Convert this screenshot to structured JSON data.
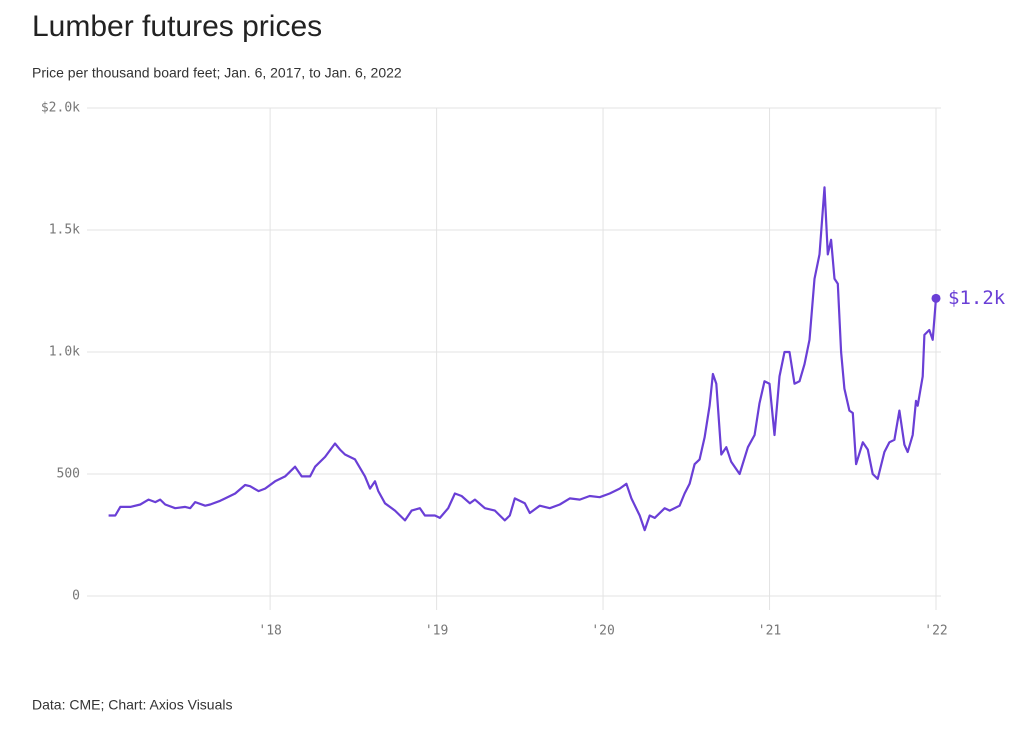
{
  "chart_data": {
    "type": "line",
    "title": "Lumber futures prices",
    "subtitle": "Price per thousand board feet; Jan. 6, 2017, to Jan. 6, 2022",
    "source": "Data: CME; Chart: Axios Visuals",
    "xlim": [
      2016.9,
      2022.03
    ],
    "xticks": [
      {
        "value": 2018,
        "label": "'18"
      },
      {
        "value": 2019,
        "label": "'19"
      },
      {
        "value": 2020,
        "label": "'20"
      },
      {
        "value": 2021,
        "label": "'21"
      },
      {
        "value": 2022,
        "label": "'22"
      }
    ],
    "ylim": [
      0,
      2000
    ],
    "yticks": [
      {
        "value": 0,
        "label": "0"
      },
      500,
      {
        "value": 1000,
        "label": "1.0k"
      },
      {
        "value": 1500,
        "label": "1.5k"
      },
      {
        "value": 2000,
        "label": "$2.0k"
      }
    ],
    "grid": true,
    "x": [
      2017.03,
      2017.07,
      2017.1,
      2017.16,
      2017.22,
      2017.27,
      2017.31,
      2017.34,
      2017.37,
      2017.43,
      2017.49,
      2017.52,
      2017.55,
      2017.61,
      2017.64,
      2017.7,
      2017.73,
      2017.79,
      2017.85,
      2017.88,
      2017.93,
      2017.97,
      2018.03,
      2018.09,
      2018.15,
      2018.19,
      2018.24,
      2018.27,
      2018.33,
      2018.39,
      2018.42,
      2018.45,
      2018.51,
      2018.57,
      2018.6,
      2018.63,
      2018.65,
      2018.69,
      2018.75,
      2018.81,
      2018.85,
      2018.9,
      2018.93,
      2018.99,
      2019.02,
      2019.07,
      2019.11,
      2019.15,
      2019.2,
      2019.23,
      2019.29,
      2019.35,
      2019.41,
      2019.44,
      2019.47,
      2019.53,
      2019.56,
      2019.62,
      2019.68,
      2019.74,
      2019.8,
      2019.86,
      2019.92,
      2019.98,
      2020.04,
      2020.1,
      2020.14,
      2020.17,
      2020.22,
      2020.25,
      2020.28,
      2020.31,
      2020.37,
      2020.4,
      2020.46,
      2020.49,
      2020.52,
      2020.55,
      2020.58,
      2020.61,
      2020.64,
      2020.66,
      2020.68,
      2020.71,
      2020.74,
      2020.77,
      2020.82,
      2020.87,
      2020.91,
      2020.94,
      2020.97,
      2021.0,
      2021.03,
      2021.06,
      2021.09,
      2021.12,
      2021.15,
      2021.18,
      2021.21,
      2021.24,
      2021.27,
      2021.3,
      2021.33,
      2021.35,
      2021.37,
      2021.39,
      2021.41,
      2021.43,
      2021.45,
      2021.48,
      2021.5,
      2021.52,
      2021.56,
      2021.59,
      2021.62,
      2021.65,
      2021.69,
      2021.72,
      2021.75,
      2021.78,
      2021.81,
      2021.83,
      2021.86,
      2021.88,
      2021.89,
      2021.92,
      2021.93,
      2021.96,
      2021.98,
      2022.0
    ],
    "series": [
      {
        "name": "Lumber futures",
        "color": "#6a3fd6",
        "values": [
          330,
          330,
          365,
          365,
          375,
          395,
          385,
          395,
          375,
          360,
          365,
          360,
          385,
          370,
          375,
          390,
          400,
          420,
          455,
          450,
          430,
          440,
          470,
          490,
          530,
          490,
          490,
          530,
          570,
          625,
          600,
          580,
          560,
          490,
          440,
          470,
          430,
          380,
          350,
          310,
          350,
          360,
          330,
          330,
          320,
          360,
          420,
          410,
          380,
          395,
          360,
          350,
          310,
          330,
          400,
          380,
          340,
          370,
          360,
          375,
          400,
          395,
          410,
          405,
          420,
          440,
          460,
          400,
          330,
          270,
          330,
          320,
          360,
          350,
          370,
          420,
          460,
          540,
          560,
          650,
          780,
          910,
          870,
          580,
          610,
          550,
          500,
          610,
          660,
          790,
          880,
          870,
          660,
          900,
          1000,
          1000,
          870,
          880,
          950,
          1050,
          1300,
          1400,
          1675,
          1400,
          1460,
          1300,
          1280,
          1000,
          850,
          760,
          750,
          540,
          630,
          600,
          500,
          480,
          590,
          630,
          640,
          760,
          620,
          590,
          660,
          800,
          780,
          900,
          1070,
          1090,
          1050,
          1220
        ],
        "value_labels": [
          null,
          null,
          null,
          null,
          null,
          null,
          null,
          null,
          null,
          null,
          null,
          null,
          null,
          null,
          null,
          null,
          null,
          null,
          null,
          null,
          null,
          null,
          null,
          null,
          null,
          null,
          null,
          null,
          null,
          null,
          null,
          null,
          null,
          null,
          null,
          null,
          null,
          null,
          null,
          null,
          null,
          null,
          null,
          null,
          null,
          null,
          null,
          null,
          null,
          null,
          null,
          null,
          null,
          null,
          null,
          null,
          null,
          null,
          null,
          null,
          null,
          null,
          null,
          null,
          null,
          null,
          null,
          null,
          null,
          null,
          null,
          null,
          null,
          null,
          null,
          null,
          null,
          null,
          null,
          null,
          null,
          null,
          null,
          null,
          null,
          null,
          null,
          null,
          null,
          null,
          null,
          null,
          null,
          null,
          null,
          null,
          null,
          null,
          null,
          null,
          null,
          null,
          null,
          null,
          null,
          null,
          null,
          null,
          null,
          null,
          null,
          null,
          null,
          null,
          null,
          null,
          null,
          null,
          null,
          null,
          null,
          null,
          null,
          null,
          null,
          null,
          null,
          null,
          null,
          "$1.2k"
        ]
      }
    ]
  }
}
